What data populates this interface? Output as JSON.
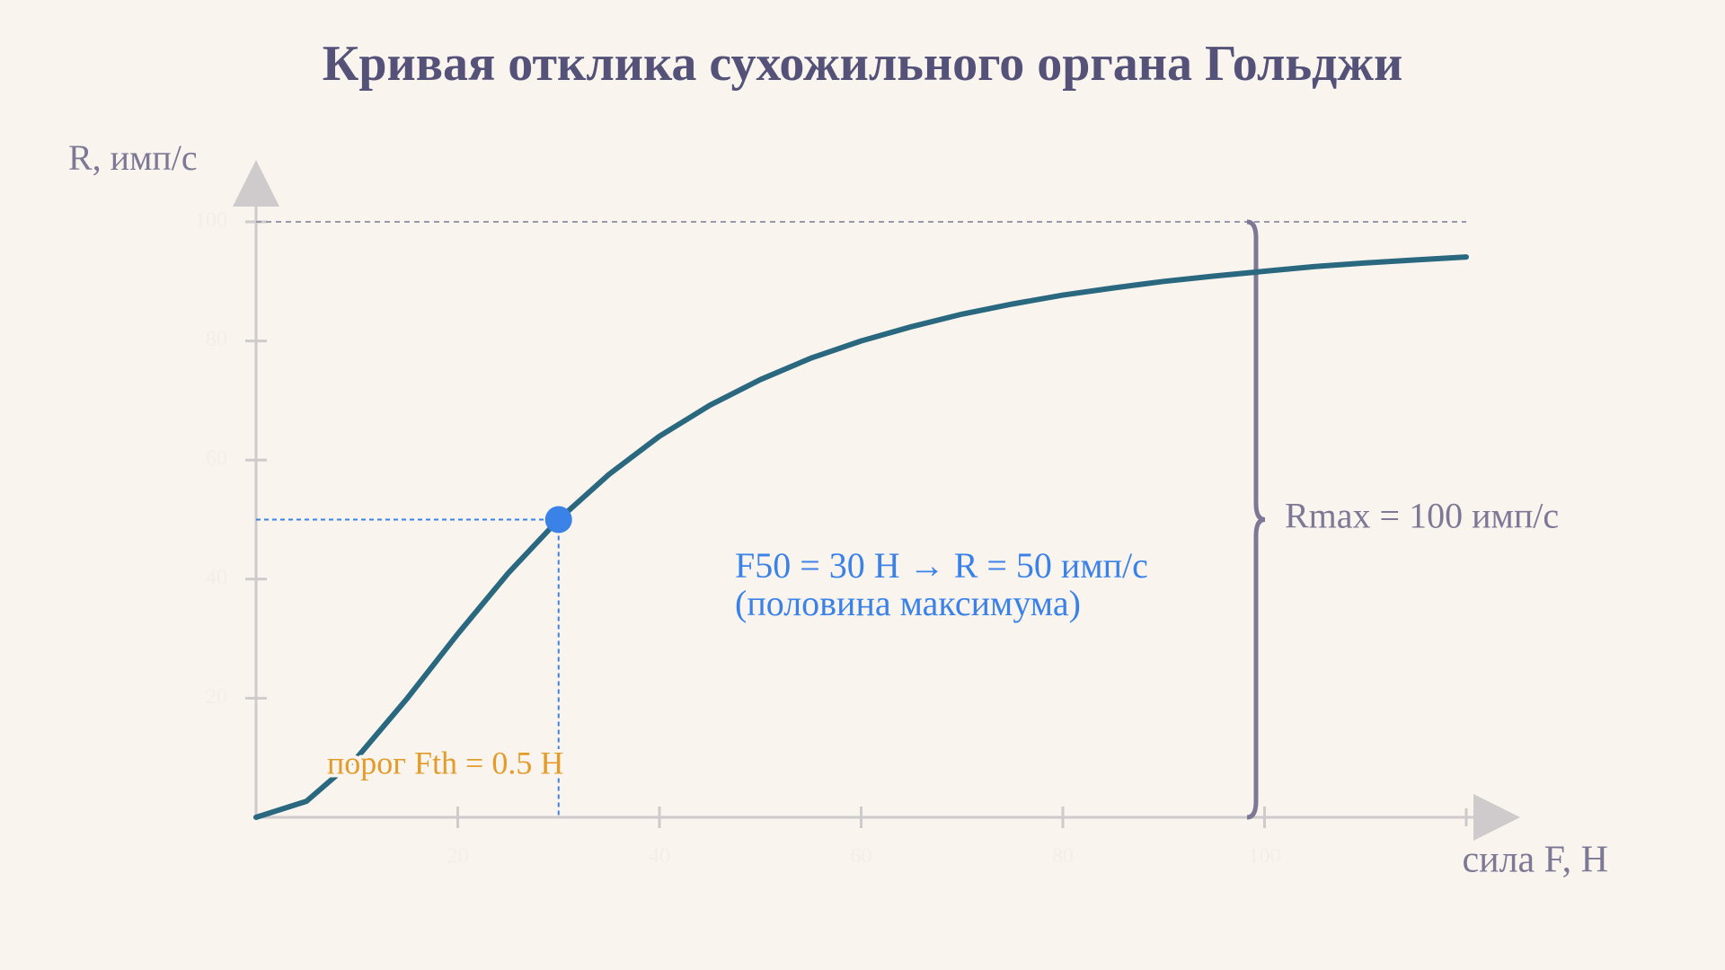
{
  "chart_data": {
    "type": "line",
    "title": "Кривая отклика сухожильного органа Гольджи",
    "y_label": "R, имп/с",
    "x_label": "сила F, Н",
    "x": [
      0,
      5,
      10,
      15,
      20,
      25,
      30,
      35,
      40,
      45,
      50,
      55,
      60,
      65,
      70,
      75,
      80,
      85,
      90,
      95,
      100,
      105,
      110,
      115,
      120
    ],
    "values": [
      0,
      2.7,
      10,
      20,
      30.8,
      41.0,
      50,
      57.6,
      64,
      69.2,
      73.5,
      77.1,
      80,
      82.4,
      84.5,
      86.2,
      87.7,
      88.9,
      90,
      90.9,
      91.7,
      92.5,
      93.1,
      93.6,
      94.1
    ],
    "color": "#2a6880",
    "xlim": [
      0,
      120
    ],
    "ylim": [
      0,
      100
    ],
    "xticks": [
      20,
      40,
      60,
      80,
      100
    ],
    "yticks": [
      20,
      40,
      60,
      80,
      100
    ],
    "highlight": {
      "x": 30,
      "y": 50,
      "color": "#3b82e8"
    },
    "highlight_labels": [
      "F50 = 30 Н → R = 50 имп/с",
      "(половина максимума)"
    ],
    "reference_line": 100,
    "reference_label": "Rmax = 100 имп/с",
    "threshold_label": "порог Fth = 0.5 Н"
  }
}
